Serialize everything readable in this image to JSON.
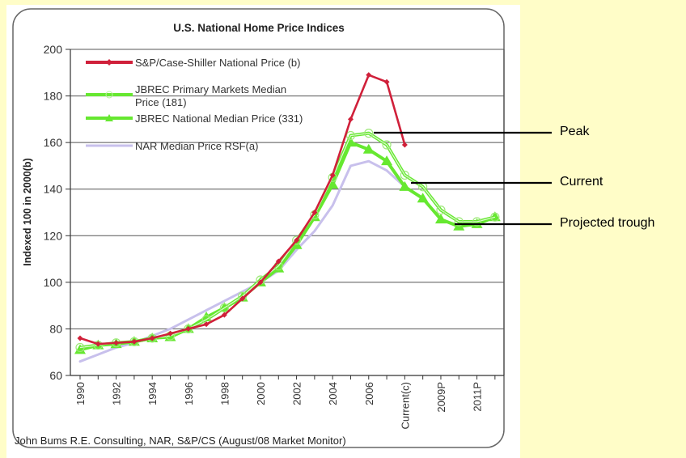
{
  "page": {
    "background_color": "#fffdc8"
  },
  "annotations": [
    {
      "label": "Peak",
      "value": 162
    },
    {
      "label": "Current",
      "value": 140
    },
    {
      "label": "Projected trough",
      "value": 125
    }
  ],
  "chart_data": {
    "type": "line",
    "title": "U.S. National Home Price Indices",
    "xlabel": "",
    "ylabel": "Indexed 100 in 2000(b)",
    "source_note": "John Bums R.E. Consulting, NAR, S&P/CS (August/08 Market Monitor)",
    "ylim": [
      60,
      200
    ],
    "yticks": [
      60,
      80,
      100,
      120,
      140,
      160,
      180,
      200
    ],
    "grid": true,
    "legend_position": "top-left",
    "x": [
      "1990",
      "1991",
      "1992",
      "1993",
      "1994",
      "1995",
      "1996",
      "1997",
      "1998",
      "1999",
      "2000",
      "2001",
      "2002",
      "2003",
      "2004",
      "2005",
      "2006",
      "2007",
      "Current(c)",
      "2009P-",
      "2009P",
      "2010P",
      "2011P",
      "2012P"
    ],
    "xtick_labels": [
      "1990",
      "1992",
      "1994",
      "1996",
      "1998",
      "2000",
      "2002",
      "2004",
      "2006",
      "Current(c)",
      "2009P",
      "2011P"
    ],
    "xtick_label_indices": [
      0,
      2,
      4,
      6,
      8,
      10,
      12,
      14,
      16,
      18,
      20,
      22
    ],
    "series": [
      {
        "name": "S&P/Case-Shiller National Price (b)",
        "color": "#d0203a",
        "marker": "diamond",
        "values": [
          76,
          73.5,
          74,
          74.5,
          76,
          78,
          80,
          82,
          86,
          93,
          100,
          109,
          118,
          130,
          146,
          170,
          189,
          186,
          159,
          null,
          null,
          null,
          null,
          null
        ]
      },
      {
        "name": "JBREC Primary Markets Median Price (181)",
        "color": "#66e830",
        "marker": "circle",
        "values": [
          72,
          73,
          74,
          74.5,
          76,
          77,
          80,
          84,
          89,
          94,
          101,
          107,
          118,
          129,
          145,
          163,
          164,
          159,
          146,
          141,
          131,
          126,
          126,
          128
        ]
      },
      {
        "name": "JBREC National Median Price (331)",
        "color": "#66e830",
        "marker": "triangle",
        "values": [
          71,
          73,
          73.5,
          74.5,
          76,
          76.5,
          80,
          85,
          89,
          93.5,
          100,
          106,
          116,
          128,
          142,
          160,
          157,
          152,
          141,
          136,
          127,
          124,
          125,
          128
        ]
      },
      {
        "name": "NAR Median Price RSF(a)",
        "color": "#c8c0ec",
        "marker": "none",
        "values": [
          66,
          69,
          72,
          74,
          77,
          80,
          84,
          88,
          92,
          96,
          100,
          105,
          114,
          122,
          133,
          150,
          152,
          148,
          141,
          null,
          null,
          null,
          null,
          null
        ]
      }
    ]
  }
}
